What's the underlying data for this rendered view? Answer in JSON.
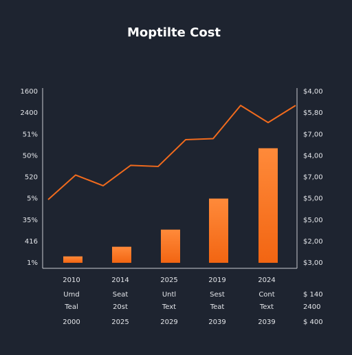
{
  "chart_data": [
    {
      "type": "bar",
      "title": "Moptilte Cost",
      "categories": [
        "2010",
        "2014",
        "2025",
        "2019",
        "2024"
      ],
      "values": [
        0.3,
        0.75,
        1.55,
        3.0,
        5.35
      ],
      "color": "#ff7a2a",
      "ylim": [
        0,
        8
      ],
      "yticks": [
        {
          "value": 8,
          "label": "1600"
        },
        {
          "value": 7,
          "label": "2400"
        },
        {
          "value": 6,
          "label": "51%"
        },
        {
          "value": 5,
          "label": "50%"
        },
        {
          "value": 4,
          "label": "520"
        },
        {
          "value": 3,
          "label": "5%"
        },
        {
          "value": 2,
          "label": "35%"
        },
        {
          "value": 1,
          "label": "416"
        },
        {
          "value": 0,
          "label": "1%"
        }
      ],
      "sublabels": [
        [
          "Umd",
          "Seat",
          "Untl",
          "Sest",
          "Cont"
        ],
        [
          "Teal",
          "20st",
          "Text",
          "Teat",
          "Text"
        ],
        [
          "2000",
          "2025",
          "2029",
          "2039",
          "2039"
        ]
      ],
      "right_footer": [
        "$ 140",
        "2400",
        "$ 400"
      ]
    },
    {
      "type": "line",
      "color": "#f26b1d",
      "values": [
        2.95,
        4.1,
        3.6,
        4.55,
        4.5,
        5.75,
        5.8,
        7.35,
        6.55,
        7.35
      ],
      "axis": "y2",
      "y2lim": [
        0,
        8
      ],
      "y2ticks": [
        {
          "value": 8,
          "label": "$4,00"
        },
        {
          "value": 7,
          "label": "$5,80"
        },
        {
          "value": 6,
          "label": "$7,00"
        },
        {
          "value": 5,
          "label": "$4,00"
        },
        {
          "value": 4,
          "label": "$7,00"
        },
        {
          "value": 3,
          "label": "$5,00"
        },
        {
          "value": 2,
          "label": "$5,00"
        },
        {
          "value": 1,
          "label": "$2,00"
        },
        {
          "value": 0,
          "label": "$3,00"
        }
      ]
    }
  ]
}
